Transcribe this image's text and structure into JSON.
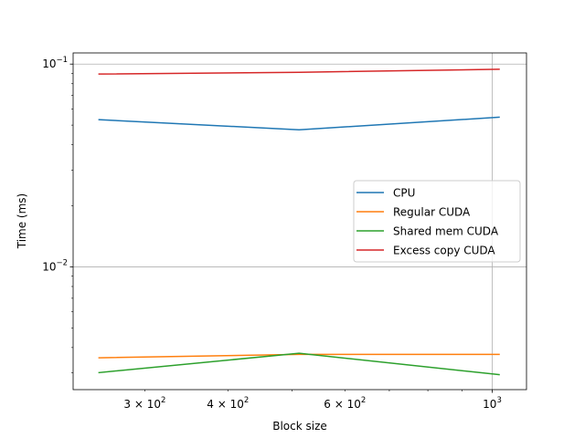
{
  "chart_data": {
    "type": "line",
    "title": "",
    "xlabel": "Block size",
    "ylabel": "Time (ms)",
    "xscale": "log",
    "yscale": "log",
    "xlim": [
      234,
      1126
    ],
    "ylim": [
      0.00248,
      0.1135
    ],
    "grid": "major",
    "legend_position": "center-right",
    "x": [
      256,
      512,
      1024
    ],
    "series": [
      {
        "name": "CPU",
        "color": "#1f77b4",
        "values": [
          0.0532,
          0.0474,
          0.0547
        ]
      },
      {
        "name": "Regular CUDA",
        "color": "#ff7f0e",
        "values": [
          0.00356,
          0.0037,
          0.0037
        ]
      },
      {
        "name": "Shared mem CUDA",
        "color": "#2ca02c",
        "values": [
          0.00301,
          0.00375,
          0.00294
        ]
      },
      {
        "name": "Excess copy CUDA",
        "color": "#d62728",
        "values": [
          0.0893,
          0.0911,
          0.0943
        ]
      }
    ],
    "x_ticks": [
      {
        "value": 300,
        "base": "3 × 10",
        "exp": "2"
      },
      {
        "value": 400,
        "base": "4 × 10",
        "exp": "2"
      },
      {
        "value": 600,
        "base": "6 × 10",
        "exp": "2"
      },
      {
        "value": 1000,
        "base": "10",
        "exp": "3"
      }
    ],
    "y_ticks": [
      {
        "value": 0.01,
        "base": "10",
        "exp": "−2"
      },
      {
        "value": 0.1,
        "base": "10",
        "exp": "−1"
      }
    ]
  }
}
